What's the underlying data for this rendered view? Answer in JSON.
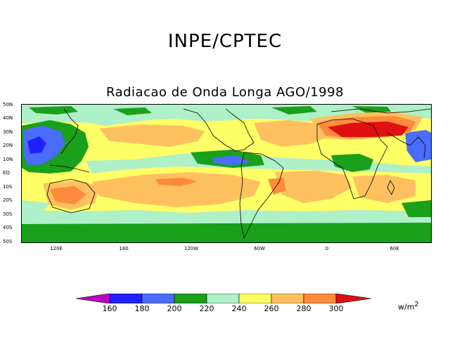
{
  "header": {
    "title": "INPE/CPTEC",
    "subtitle": "Radiacao de Onda Longa AGO/1998"
  },
  "map": {
    "lat_labels": [
      "50N",
      "40N",
      "30N",
      "20N",
      "10N",
      "EQ",
      "10S",
      "20S",
      "30S",
      "40S",
      "50S"
    ],
    "lon_labels": [
      "120E",
      "180",
      "120W",
      "60W",
      "0",
      "60E"
    ]
  },
  "colorbar": {
    "labels": [
      "160",
      "180",
      "200",
      "220",
      "240",
      "260",
      "280",
      "300"
    ],
    "unit": "w/m",
    "unit_exp": "2",
    "colors": [
      "#c000c0",
      "#2020ff",
      "#4a6cff",
      "#1aa01a",
      "#aef0c8",
      "#ffff66",
      "#ffc060",
      "#ff8a3c",
      "#e01010"
    ]
  }
}
